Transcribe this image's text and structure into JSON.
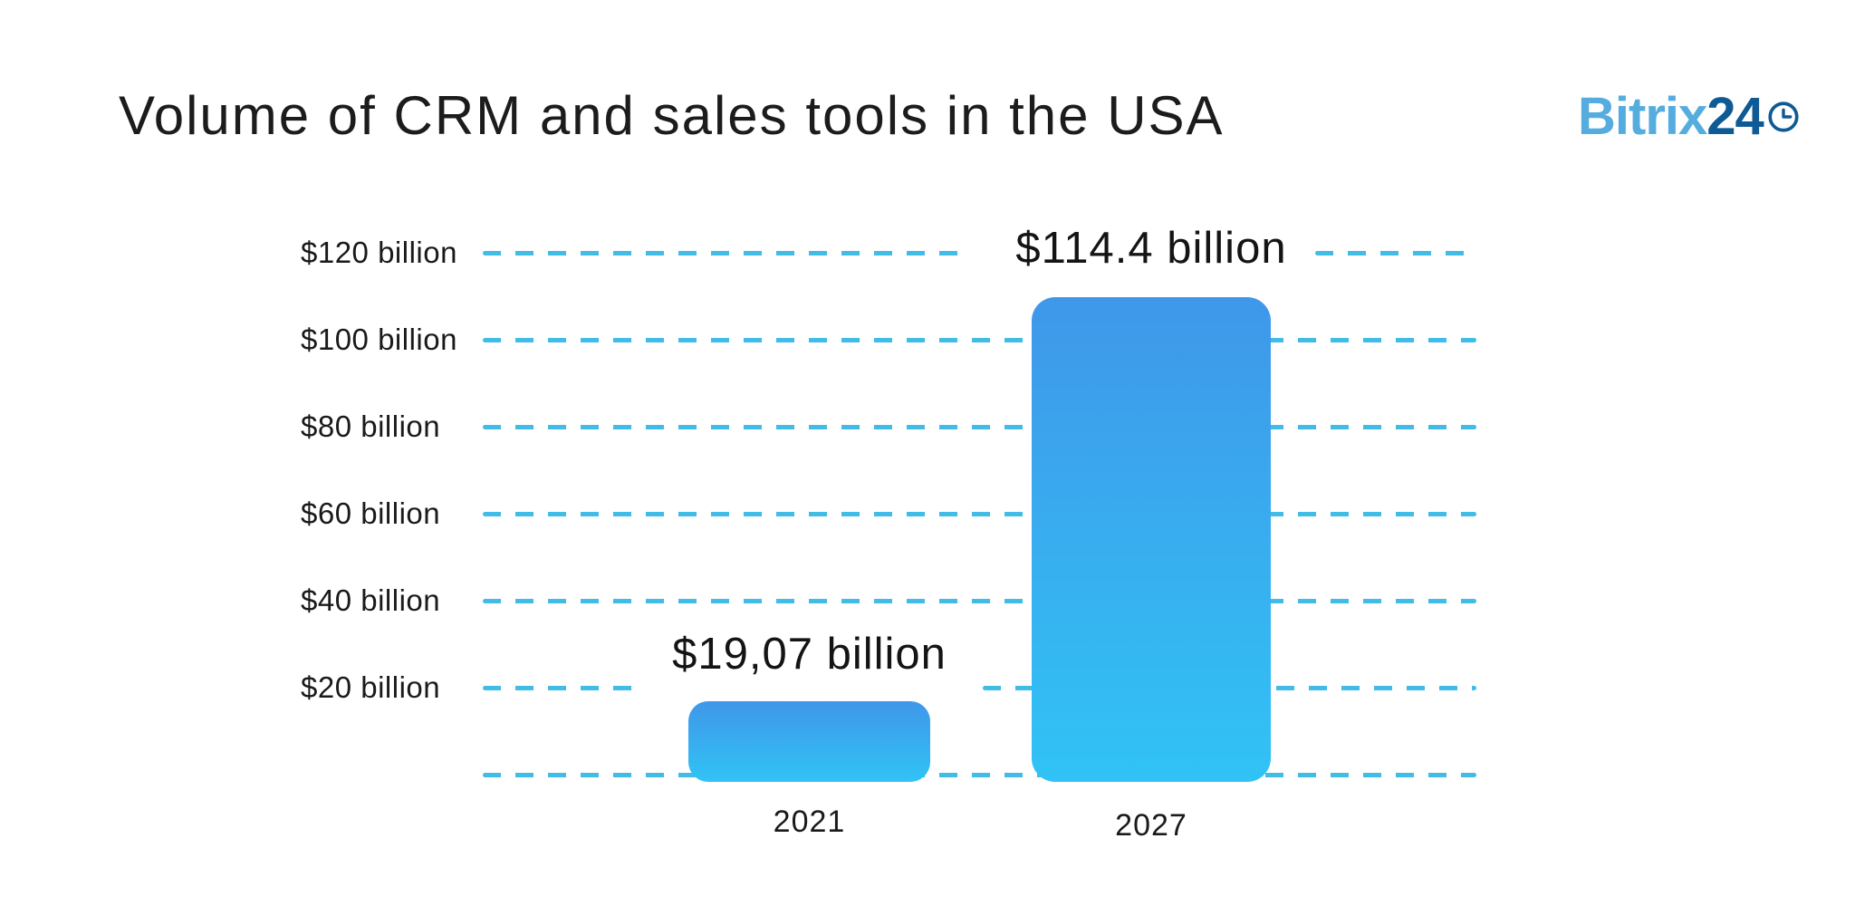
{
  "header": {
    "title": "Volume of CRM and sales tools in the USA",
    "logo": {
      "brand": "Bitrix",
      "suffix": "24",
      "icon": "clock",
      "brand_color": "#55acdf",
      "suffix_color": "#0e5a94"
    }
  },
  "chart_data": {
    "type": "bar",
    "title": "Volume of CRM and sales tools in the USA",
    "categories": [
      "2021",
      "2027"
    ],
    "values": [
      19.07,
      114.4
    ],
    "value_labels": [
      "$19,07 billion",
      "$114.4 billion"
    ],
    "unit": "billion USD",
    "xlabel": "",
    "ylabel": "",
    "ylim": [
      0,
      130
    ],
    "ytick_values": [
      120,
      100,
      80,
      60,
      40,
      20
    ],
    "ytick_labels": [
      "$120 billion",
      "$100 billion",
      "$80 billion",
      "$60 billion",
      "$40 billion",
      "$20 billion"
    ],
    "grid": "horizontal-dashed",
    "grid_color": "#41bce6",
    "bar_gradient_top": "#3f97e9",
    "bar_gradient_bottom": "#31c3f5",
    "legend_position": "none"
  }
}
